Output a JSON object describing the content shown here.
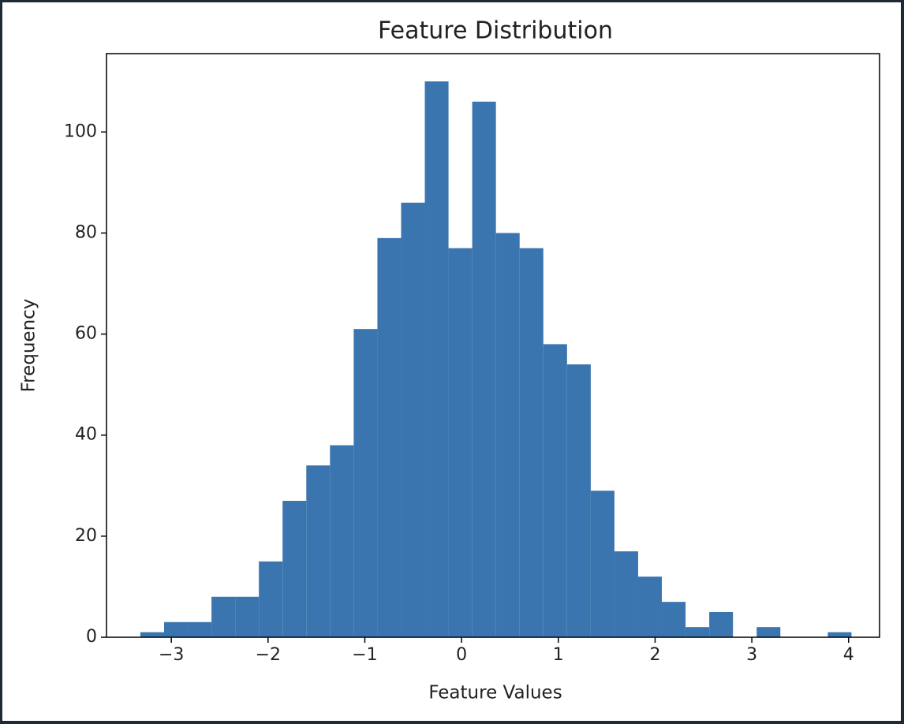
{
  "chart_data": {
    "type": "histogram",
    "title": "Feature Distribution",
    "x_label": "Feature Values",
    "y_label": "Frequency",
    "bins": [
      -3.32,
      -3.075,
      -2.83,
      -2.585,
      -2.34,
      -2.095,
      -1.85,
      -1.605,
      -1.36,
      -1.115,
      -0.87,
      -0.625,
      -0.38,
      -0.135,
      0.11,
      0.355,
      0.6,
      0.845,
      1.09,
      1.335,
      1.58,
      1.825,
      2.07,
      2.315,
      2.56,
      2.805,
      3.05,
      3.295,
      3.54,
      3.785,
      4.03
    ],
    "counts": [
      1,
      3,
      3,
      8,
      8,
      15,
      27,
      34,
      38,
      61,
      79,
      86,
      110,
      77,
      106,
      80,
      77,
      58,
      54,
      29,
      17,
      12,
      7,
      2,
      5,
      0,
      2,
      0,
      0,
      1
    ],
    "color": "#3b75af",
    "xlim": [
      -3.67,
      4.32
    ],
    "xticks": [
      {
        "value": -3,
        "label": "−3"
      },
      {
        "value": -2,
        "label": "−2"
      },
      {
        "value": -1,
        "label": "−1"
      },
      0,
      1,
      2,
      3,
      4
    ],
    "ylim": [
      0,
      115.5
    ],
    "yticks": [
      0,
      20,
      40,
      60,
      80,
      100
    ]
  }
}
